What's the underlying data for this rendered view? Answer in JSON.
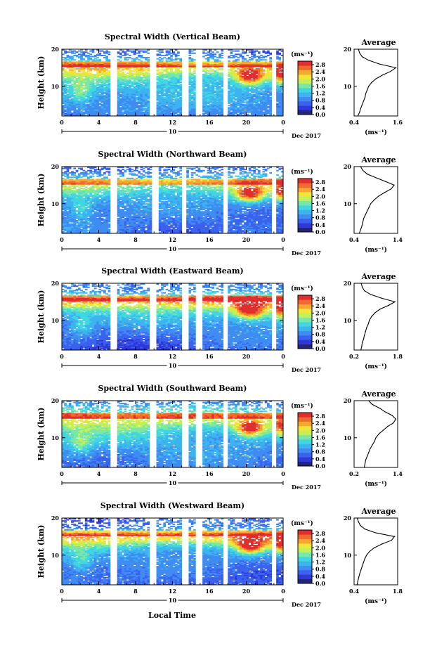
{
  "figure": {
    "xlabel": "Local Time",
    "ylabel": "Height (km)",
    "date_label": "Dec 2017",
    "day_label": "10",
    "avg_title": "Average",
    "colorbar_unit": "(ms⁻¹)",
    "avg_xunit": "(ms⁻¹)"
  },
  "colors": {
    "colormap": [
      "#24247a",
      "#2f38d8",
      "#3a62ee",
      "#3f8cf2",
      "#3cb4ef",
      "#42d6e0",
      "#79e8a6",
      "#c4ef58",
      "#f3e43a",
      "#f6a631",
      "#f06a2f",
      "#e02e2e"
    ],
    "background": "#ffffff",
    "axis": "#000000"
  },
  "chart_data": [
    {
      "type": "heatmap",
      "title": "Spectral Width (Vertical Beam)",
      "xlabel": "Local Time",
      "ylabel": "Height (km)",
      "x_ticks": [
        "0",
        "4",
        "8",
        "12",
        "16",
        "20",
        "0"
      ],
      "y_ticks": [
        "10",
        "20"
      ],
      "xlim": [
        0,
        24
      ],
      "ylim": [
        2,
        20
      ],
      "colorbar": {
        "unit": "(ms⁻¹)",
        "ticks": [
          "0.0",
          "0.4",
          "0.8",
          "1.2",
          "1.6",
          "2.0",
          "2.4",
          "2.8"
        ],
        "range": [
          0,
          3.0
        ]
      },
      "data_gaps_hours": [
        [
          5.3,
          5.8
        ],
        [
          9.7,
          10.2
        ],
        [
          13.0,
          13.6
        ],
        [
          14.7,
          15.1
        ],
        [
          17.6,
          18.0
        ],
        [
          22.8,
          23.1
        ]
      ],
      "average_profile": {
        "title": "Average",
        "xlabel": "(ms⁻¹)",
        "x_ticks": [
          "0.4",
          "1.6"
        ],
        "xlim": [
          0.4,
          1.6
        ],
        "y_ticks": [
          "10",
          "20"
        ],
        "ylim": [
          2,
          20
        ],
        "height_km": [
          2,
          3,
          4,
          5,
          6,
          7,
          8,
          9,
          10,
          11,
          12,
          13,
          14,
          15,
          16,
          17,
          18,
          19,
          20
        ],
        "width_ms": [
          0.5,
          0.55,
          0.58,
          0.62,
          0.66,
          0.7,
          0.72,
          0.76,
          0.8,
          0.88,
          1.0,
          1.18,
          1.4,
          1.55,
          1.1,
          0.8,
          0.62,
          0.55,
          0.52
        ]
      }
    },
    {
      "type": "heatmap",
      "title": "Spectral Width (Northward Beam)",
      "xlabel": "Local Time",
      "ylabel": "Height (km)",
      "x_ticks": [
        "0",
        "4",
        "8",
        "12",
        "16",
        "20",
        "0"
      ],
      "y_ticks": [
        "10",
        "20"
      ],
      "xlim": [
        0,
        24
      ],
      "ylim": [
        2,
        20
      ],
      "colorbar": {
        "unit": "(ms⁻¹)",
        "ticks": [
          "0.0",
          "0.4",
          "0.8",
          "1.2",
          "1.6",
          "2.0",
          "2.4",
          "2.8"
        ],
        "range": [
          0,
          3.0
        ]
      },
      "data_gaps_hours": [
        [
          5.4,
          5.9
        ],
        [
          9.8,
          10.3
        ],
        [
          13.0,
          13.5
        ],
        [
          17.6,
          18.0
        ],
        [
          22.9,
          23.2
        ]
      ],
      "average_profile": {
        "title": "Average",
        "xlabel": "(ms⁻¹)",
        "x_ticks": [
          "0.4",
          "1.4"
        ],
        "xlim": [
          0.4,
          1.4
        ],
        "y_ticks": [
          "10",
          "20"
        ],
        "ylim": [
          2,
          20
        ],
        "height_km": [
          2,
          3,
          4,
          5,
          6,
          7,
          8,
          9,
          10,
          11,
          12,
          13,
          14,
          15,
          16,
          17,
          18,
          19,
          20
        ],
        "width_ms": [
          0.52,
          0.55,
          0.58,
          0.6,
          0.62,
          0.66,
          0.7,
          0.74,
          0.78,
          0.86,
          0.96,
          1.1,
          1.25,
          1.32,
          1.12,
          0.9,
          0.7,
          0.6,
          0.55
        ]
      }
    },
    {
      "type": "heatmap",
      "title": "Spectral Width (Eastward Beam)",
      "xlabel": "Local Time",
      "ylabel": "Height (km)",
      "x_ticks": [
        "0",
        "4",
        "8",
        "12",
        "16",
        "20",
        "0"
      ],
      "y_ticks": [
        "10",
        "20"
      ],
      "xlim": [
        0,
        24
      ],
      "ylim": [
        2,
        20
      ],
      "colorbar": {
        "unit": "(ms⁻¹)",
        "ticks": [
          "0.0",
          "0.4",
          "0.8",
          "1.2",
          "1.6",
          "2.0",
          "2.4",
          "2.8"
        ],
        "range": [
          0,
          3.0
        ]
      },
      "data_gaps_hours": [
        [
          5.3,
          5.8
        ],
        [
          9.7,
          10.2
        ],
        [
          13.0,
          13.6
        ],
        [
          14.6,
          15.1
        ],
        [
          17.6,
          18.0
        ],
        [
          22.8,
          23.1
        ]
      ],
      "average_profile": {
        "title": "Average",
        "xlabel": "(ms⁻¹)",
        "x_ticks": [
          "0.2",
          "1.8"
        ],
        "xlim": [
          0.2,
          1.8
        ],
        "y_ticks": [
          "10",
          "20"
        ],
        "ylim": [
          2,
          20
        ],
        "height_km": [
          2,
          3,
          4,
          5,
          6,
          7,
          8,
          9,
          10,
          11,
          12,
          13,
          14,
          15,
          16,
          17,
          18,
          19,
          20
        ],
        "width_ms": [
          0.45,
          0.48,
          0.5,
          0.55,
          0.58,
          0.62,
          0.66,
          0.72,
          0.76,
          0.84,
          0.96,
          1.15,
          1.45,
          1.7,
          1.2,
          0.8,
          0.58,
          0.5,
          0.46
        ]
      }
    },
    {
      "type": "heatmap",
      "title": "Spectral Width (Southward Beam)",
      "xlabel": "Local Time",
      "ylabel": "Height (km)",
      "x_ticks": [
        "0",
        "4",
        "8",
        "12",
        "16",
        "20",
        "0"
      ],
      "y_ticks": [
        "10",
        "20"
      ],
      "xlim": [
        0,
        24
      ],
      "ylim": [
        2,
        20
      ],
      "colorbar": {
        "unit": "(ms⁻¹)",
        "ticks": [
          "0.0",
          "0.4",
          "0.8",
          "1.2",
          "1.6",
          "2.0",
          "2.4",
          "2.8"
        ],
        "range": [
          0,
          3.0
        ]
      },
      "data_gaps_hours": [
        [
          5.3,
          5.8
        ],
        [
          9.7,
          10.2
        ],
        [
          13.0,
          13.6
        ],
        [
          14.6,
          15.1
        ],
        [
          17.6,
          18.0
        ],
        [
          22.8,
          23.1
        ]
      ],
      "average_profile": {
        "title": "Average",
        "xlabel": "(ms⁻¹)",
        "x_ticks": [
          "0.2",
          "1.4"
        ],
        "xlim": [
          0.2,
          1.4
        ],
        "y_ticks": [
          "10",
          "20"
        ],
        "ylim": [
          2,
          20
        ],
        "height_km": [
          2,
          3,
          4,
          5,
          6,
          7,
          8,
          9,
          10,
          11,
          12,
          13,
          14,
          15,
          16,
          17,
          18,
          19,
          20
        ],
        "width_ms": [
          0.48,
          0.5,
          0.52,
          0.56,
          0.6,
          0.64,
          0.7,
          0.76,
          0.8,
          0.88,
          1.0,
          1.12,
          1.28,
          1.35,
          1.25,
          1.05,
          0.9,
          0.7,
          0.6
        ]
      }
    },
    {
      "type": "heatmap",
      "title": "Spectral Width (Westward Beam)",
      "xlabel": "Local Time",
      "ylabel": "Height (km)",
      "x_ticks": [
        "0",
        "4",
        "8",
        "12",
        "16",
        "20",
        "0"
      ],
      "y_ticks": [
        "10",
        "20"
      ],
      "xlim": [
        0,
        24
      ],
      "ylim": [
        2,
        20
      ],
      "colorbar": {
        "unit": "(ms⁻¹)",
        "ticks": [
          "0.0",
          "0.4",
          "0.8",
          "1.2",
          "1.6",
          "2.0",
          "2.4",
          "2.8"
        ],
        "range": [
          0,
          3.0
        ]
      },
      "data_gaps_hours": [
        [
          5.3,
          5.8
        ],
        [
          9.7,
          10.2
        ],
        [
          13.0,
          13.6
        ],
        [
          14.6,
          15.1
        ],
        [
          17.6,
          18.0
        ],
        [
          22.8,
          23.1
        ]
      ],
      "average_profile": {
        "title": "Average",
        "xlabel": "(ms⁻¹)",
        "x_ticks": [
          "0.4",
          "1.8"
        ],
        "xlim": [
          0.4,
          1.8
        ],
        "y_ticks": [
          "10",
          "20"
        ],
        "ylim": [
          2,
          20
        ],
        "height_km": [
          2,
          3,
          4,
          5,
          6,
          7,
          8,
          9,
          10,
          11,
          12,
          13,
          14,
          15,
          16,
          17,
          18,
          19,
          20
        ],
        "width_ms": [
          0.5,
          0.52,
          0.55,
          0.58,
          0.62,
          0.66,
          0.7,
          0.74,
          0.8,
          0.9,
          1.05,
          1.3,
          1.6,
          1.7,
          1.1,
          0.75,
          0.6,
          0.54,
          0.5
        ]
      }
    }
  ]
}
